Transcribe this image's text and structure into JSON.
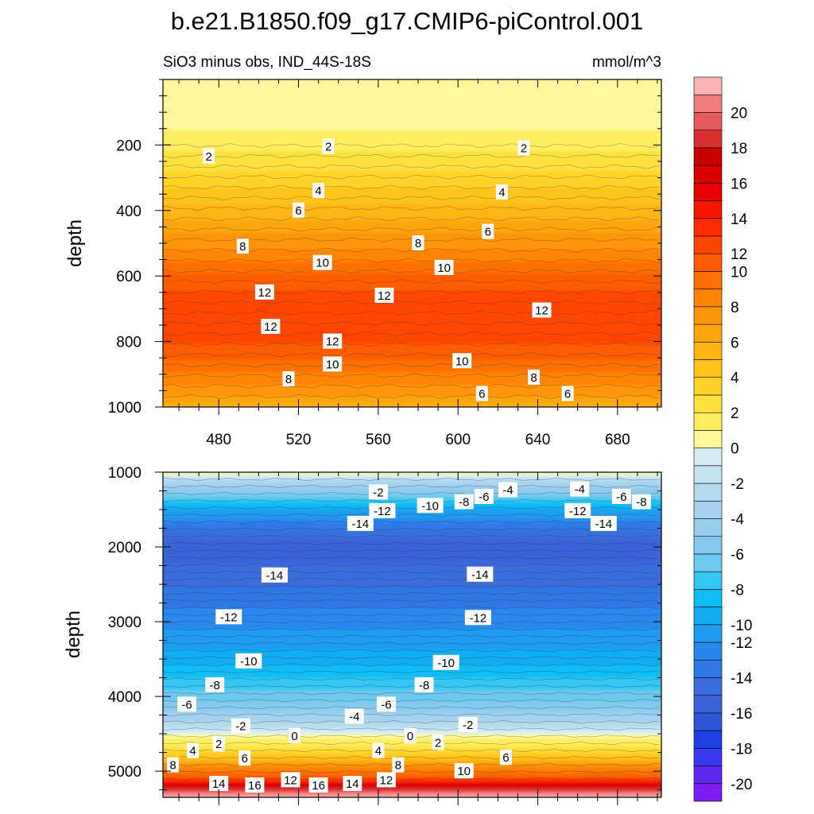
{
  "title": "b.e21.B1850.f09_g17.CMIP6-piControl.001",
  "subtitle_left": "SiO3 minus obs, IND_44S-18S",
  "subtitle_right": "mmol/m^3",
  "chart_data": [
    {
      "type": "heatmap",
      "panel": "upper",
      "ylabel": "depth",
      "xlim": [
        452,
        702
      ],
      "ylim": [
        1000,
        0
      ],
      "x_ticks": [
        480,
        520,
        560,
        600,
        640,
        680
      ],
      "y_ticks": [
        200,
        400,
        600,
        800,
        1000
      ],
      "depth_profile": [
        {
          "depth": 0,
          "value": 0.5
        },
        {
          "depth": 150,
          "value": 1.0
        },
        {
          "depth": 200,
          "value": 1.8
        },
        {
          "depth": 300,
          "value": 3.5
        },
        {
          "depth": 400,
          "value": 5.5
        },
        {
          "depth": 500,
          "value": 8.0
        },
        {
          "depth": 600,
          "value": 10.8
        },
        {
          "depth": 650,
          "value": 11.8
        },
        {
          "depth": 720,
          "value": 12.4
        },
        {
          "depth": 800,
          "value": 11.6
        },
        {
          "depth": 880,
          "value": 10.0
        },
        {
          "depth": 950,
          "value": 8.0
        },
        {
          "depth": 1000,
          "value": 6.0
        }
      ],
      "contour_labels": [
        {
          "text": "2",
          "x": 475,
          "y": 235
        },
        {
          "text": "2",
          "x": 535,
          "y": 205
        },
        {
          "text": "2",
          "x": 633,
          "y": 210
        },
        {
          "text": "4",
          "x": 530,
          "y": 340
        },
        {
          "text": "4",
          "x": 622,
          "y": 345
        },
        {
          "text": "6",
          "x": 520,
          "y": 400
        },
        {
          "text": "6",
          "x": 615,
          "y": 465
        },
        {
          "text": "8",
          "x": 492,
          "y": 510
        },
        {
          "text": "8",
          "x": 580,
          "y": 500
        },
        {
          "text": "10",
          "x": 532,
          "y": 560
        },
        {
          "text": "10",
          "x": 593,
          "y": 575
        },
        {
          "text": "12",
          "x": 503,
          "y": 650
        },
        {
          "text": "12",
          "x": 563,
          "y": 660
        },
        {
          "text": "12",
          "x": 642,
          "y": 705
        },
        {
          "text": "12",
          "x": 506,
          "y": 755
        },
        {
          "text": "12",
          "x": 537,
          "y": 800
        },
        {
          "text": "10",
          "x": 537,
          "y": 870
        },
        {
          "text": "10",
          "x": 602,
          "y": 860
        },
        {
          "text": "8",
          "x": 515,
          "y": 915
        },
        {
          "text": "8",
          "x": 638,
          "y": 910
        },
        {
          "text": "6",
          "x": 612,
          "y": 960
        },
        {
          "text": "6",
          "x": 655,
          "y": 960
        }
      ]
    },
    {
      "type": "heatmap",
      "panel": "lower",
      "ylabel": "depth",
      "xlim": [
        452,
        702
      ],
      "ylim": [
        5350,
        1000
      ],
      "y_ticks": [
        1000,
        2000,
        3000,
        4000,
        5000
      ],
      "depth_profile": [
        {
          "depth": 1000,
          "value": 1.0
        },
        {
          "depth": 1100,
          "value": -2.0
        },
        {
          "depth": 1250,
          "value": -5.5
        },
        {
          "depth": 1500,
          "value": -10.0
        },
        {
          "depth": 1800,
          "value": -14.0
        },
        {
          "depth": 2000,
          "value": -15.5
        },
        {
          "depth": 2300,
          "value": -14.5
        },
        {
          "depth": 3000,
          "value": -12.0
        },
        {
          "depth": 3500,
          "value": -10.0
        },
        {
          "depth": 3800,
          "value": -8.0
        },
        {
          "depth": 4100,
          "value": -6.0
        },
        {
          "depth": 4300,
          "value": -3.5
        },
        {
          "depth": 4450,
          "value": -1.0
        },
        {
          "depth": 4550,
          "value": 0.5
        },
        {
          "depth": 4700,
          "value": 3.0
        },
        {
          "depth": 4900,
          "value": 7.0
        },
        {
          "depth": 5100,
          "value": 12.0
        },
        {
          "depth": 5200,
          "value": 16.5
        },
        {
          "depth": 5250,
          "value": 19.0
        },
        {
          "depth": 5300,
          "value": 21.0
        },
        {
          "depth": 5350,
          "value": 21.0
        }
      ],
      "contour_labels": [
        {
          "text": "-2",
          "x": 560,
          "y": 1270
        },
        {
          "text": "-4",
          "x": 625,
          "y": 1240
        },
        {
          "text": "-4",
          "x": 661,
          "y": 1230
        },
        {
          "text": "-6",
          "x": 613,
          "y": 1330
        },
        {
          "text": "-6",
          "x": 682,
          "y": 1330
        },
        {
          "text": "-8",
          "x": 603,
          "y": 1400
        },
        {
          "text": "-8",
          "x": 692,
          "y": 1400
        },
        {
          "text": "-10",
          "x": 586,
          "y": 1450
        },
        {
          "text": "-12",
          "x": 562,
          "y": 1520
        },
        {
          "text": "-12",
          "x": 660,
          "y": 1520
        },
        {
          "text": "-14",
          "x": 551,
          "y": 1690
        },
        {
          "text": "-14",
          "x": 673,
          "y": 1690
        },
        {
          "text": "-14",
          "x": 508,
          "y": 2380
        },
        {
          "text": "-14",
          "x": 611,
          "y": 2370
        },
        {
          "text": "-12",
          "x": 485,
          "y": 2940
        },
        {
          "text": "-12",
          "x": 610,
          "y": 2950
        },
        {
          "text": "-10",
          "x": 495,
          "y": 3530
        },
        {
          "text": "-10",
          "x": 594,
          "y": 3550
        },
        {
          "text": "-8",
          "x": 478,
          "y": 3850
        },
        {
          "text": "-8",
          "x": 583,
          "y": 3850
        },
        {
          "text": "-6",
          "x": 464,
          "y": 4110
        },
        {
          "text": "-6",
          "x": 564,
          "y": 4110
        },
        {
          "text": "-4",
          "x": 548,
          "y": 4270
        },
        {
          "text": "-2",
          "x": 491,
          "y": 4400
        },
        {
          "text": "-2",
          "x": 605,
          "y": 4380
        },
        {
          "text": "0",
          "x": 518,
          "y": 4530
        },
        {
          "text": "0",
          "x": 576,
          "y": 4530
        },
        {
          "text": "2",
          "x": 480,
          "y": 4640
        },
        {
          "text": "2",
          "x": 590,
          "y": 4620
        },
        {
          "text": "4",
          "x": 467,
          "y": 4730
        },
        {
          "text": "4",
          "x": 560,
          "y": 4730
        },
        {
          "text": "6",
          "x": 493,
          "y": 4830
        },
        {
          "text": "6",
          "x": 624,
          "y": 4820
        },
        {
          "text": "8",
          "x": 457,
          "y": 4920
        },
        {
          "text": "8",
          "x": 570,
          "y": 4920
        },
        {
          "text": "10",
          "x": 603,
          "y": 5000
        },
        {
          "text": "12",
          "x": 516,
          "y": 5120
        },
        {
          "text": "12",
          "x": 564,
          "y": 5120
        },
        {
          "text": "14",
          "x": 480,
          "y": 5170
        },
        {
          "text": "14",
          "x": 547,
          "y": 5170
        },
        {
          "text": "16",
          "x": 498,
          "y": 5190
        },
        {
          "text": "16",
          "x": 530,
          "y": 5190
        }
      ]
    }
  ],
  "colorbar": {
    "labels": [
      "20",
      "18",
      "16",
      "14",
      "12",
      "10",
      "8",
      "6",
      "4",
      "2",
      "0",
      "-2",
      "-4",
      "-6",
      "-8",
      "-10",
      "-12",
      "-14",
      "-16",
      "-18",
      "-20"
    ],
    "colors_bottom_to_top": [
      "#7c1cf0",
      "#5f28ee",
      "#3b3bf0",
      "#1f3fe6",
      "#2e55d8",
      "#3d63d8",
      "#3b6edc",
      "#2f79e6",
      "#2888ec",
      "#1f9bf0",
      "#12acf2",
      "#10bdf5",
      "#34c6f4",
      "#6ec9ee",
      "#86c9ef",
      "#98cdee",
      "#a5d3ef",
      "#b2daf0",
      "#c2e3f2",
      "#d6edf7",
      "#fff89a",
      "#ffed60",
      "#ffe140",
      "#ffd42a",
      "#ffc41a",
      "#ffb514",
      "#ffa60e",
      "#ff9508",
      "#ff8404",
      "#ff7002",
      "#ff5c00",
      "#ff4600",
      "#ff2c00",
      "#f81500",
      "#e80000",
      "#d80000",
      "#c80000",
      "#d83030",
      "#e65a5a",
      "#f07c7c",
      "#fbb4b4"
    ]
  }
}
